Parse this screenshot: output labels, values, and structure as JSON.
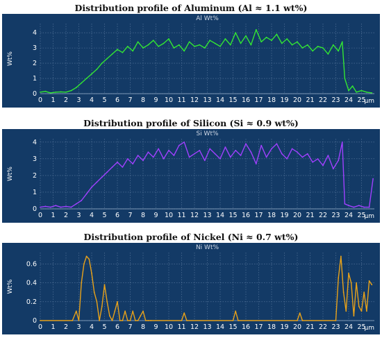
{
  "colors": {
    "panel_bg": "#133a66",
    "grid": "#5b7aa0",
    "aluminum": "#33e633",
    "silicon": "#a040ff",
    "nickel": "#e8a21a"
  },
  "chart_data": [
    {
      "type": "line",
      "title": "Distribution profile of Aluminum (Al ≈ 1.1 wt%)",
      "subtitle": "Al Wt%",
      "ylabel": "Wt%",
      "xlabel": "µm",
      "xlim": [
        0,
        26
      ],
      "ylim": [
        0,
        4.6
      ],
      "xticks": [
        "0",
        "1",
        "2",
        "3",
        "4",
        "5",
        "6",
        "7",
        "8",
        "9",
        "10",
        "11",
        "12",
        "13",
        "14",
        "15",
        "16",
        "17",
        "18",
        "19",
        "20",
        "21",
        "22",
        "23",
        "24",
        "25"
      ],
      "yticks": [
        "0",
        "1",
        "2",
        "3",
        "4"
      ],
      "grid": true,
      "series": [
        {
          "color": "#33e633",
          "x": [
            0,
            0.4,
            0.8,
            1.2,
            1.6,
            2.0,
            2.4,
            2.8,
            3.2,
            3.6,
            4.0,
            4.4,
            4.8,
            5.2,
            5.6,
            6.0,
            6.4,
            6.8,
            7.2,
            7.6,
            8.0,
            8.4,
            8.8,
            9.2,
            9.6,
            10.0,
            10.4,
            10.8,
            11.2,
            11.6,
            12.0,
            12.4,
            12.8,
            13.2,
            13.6,
            14.0,
            14.4,
            14.8,
            15.2,
            15.6,
            16.0,
            16.4,
            16.8,
            17.2,
            17.6,
            18.0,
            18.4,
            18.8,
            19.2,
            19.6,
            20.0,
            20.4,
            20.8,
            21.2,
            21.6,
            22.0,
            22.4,
            22.8,
            23.2,
            23.5,
            23.7,
            24.0,
            24.3,
            24.6,
            25.0,
            25.4,
            25.8
          ],
          "y": [
            0.1,
            0.15,
            0.05,
            0.1,
            0.12,
            0.1,
            0.2,
            0.4,
            0.7,
            1.0,
            1.3,
            1.6,
            2.0,
            2.3,
            2.6,
            2.9,
            2.7,
            3.1,
            2.8,
            3.4,
            3.0,
            3.2,
            3.5,
            3.1,
            3.3,
            3.6,
            3.0,
            3.2,
            2.8,
            3.4,
            3.1,
            3.2,
            3.0,
            3.5,
            3.3,
            3.1,
            3.6,
            3.2,
            4.0,
            3.3,
            3.8,
            3.2,
            4.2,
            3.4,
            3.7,
            3.5,
            3.9,
            3.3,
            3.6,
            3.2,
            3.4,
            3.0,
            3.2,
            2.8,
            3.1,
            3.0,
            2.6,
            3.2,
            2.8,
            3.4,
            1.0,
            0.2,
            0.5,
            0.1,
            0.2,
            0.1,
            0.05
          ]
        }
      ]
    },
    {
      "type": "line",
      "title": "Distribution profile of Silicon (Si ≈ 0.9 wt%)",
      "subtitle": "Si Wt%",
      "ylabel": "Wt%",
      "xlabel": "µm",
      "xlim": [
        0,
        26
      ],
      "ylim": [
        0,
        4.2
      ],
      "xticks": [
        "0",
        "1",
        "2",
        "3",
        "4",
        "5",
        "6",
        "7",
        "8",
        "9",
        "10",
        "11",
        "12",
        "13",
        "14",
        "15",
        "16",
        "17",
        "18",
        "19",
        "20",
        "21",
        "22",
        "23",
        "24",
        "25"
      ],
      "yticks": [
        "0",
        "1",
        "2",
        "3",
        "4"
      ],
      "grid": true,
      "series": [
        {
          "color": "#a040ff",
          "x": [
            0,
            0.4,
            0.8,
            1.2,
            1.6,
            2.0,
            2.4,
            2.8,
            3.2,
            3.6,
            4.0,
            4.4,
            4.8,
            5.2,
            5.6,
            6.0,
            6.4,
            6.8,
            7.2,
            7.6,
            8.0,
            8.4,
            8.8,
            9.2,
            9.6,
            10.0,
            10.4,
            10.8,
            11.2,
            11.6,
            12.0,
            12.4,
            12.8,
            13.2,
            13.6,
            14.0,
            14.4,
            14.8,
            15.2,
            15.6,
            16.0,
            16.4,
            16.8,
            17.2,
            17.6,
            18.0,
            18.4,
            18.8,
            19.2,
            19.6,
            20.0,
            20.4,
            20.8,
            21.2,
            21.6,
            22.0,
            22.4,
            22.8,
            23.2,
            23.5,
            23.7,
            24.0,
            24.4,
            24.8,
            25.2,
            25.6,
            25.9
          ],
          "y": [
            0.1,
            0.15,
            0.1,
            0.2,
            0.1,
            0.15,
            0.1,
            0.3,
            0.5,
            0.9,
            1.3,
            1.6,
            1.9,
            2.2,
            2.5,
            2.8,
            2.5,
            3.0,
            2.7,
            3.2,
            2.9,
            3.4,
            3.1,
            3.6,
            3.0,
            3.5,
            3.2,
            3.8,
            4.0,
            3.1,
            3.3,
            3.5,
            2.9,
            3.6,
            3.3,
            3.0,
            3.7,
            3.1,
            3.5,
            3.2,
            3.9,
            3.4,
            2.7,
            3.8,
            3.1,
            3.6,
            3.9,
            3.3,
            3.0,
            3.6,
            3.4,
            3.1,
            3.3,
            2.8,
            3.0,
            2.6,
            3.2,
            2.4,
            2.9,
            4.0,
            0.3,
            0.2,
            0.1,
            0.2,
            0.1,
            0.1,
            1.8
          ]
        }
      ]
    },
    {
      "type": "line",
      "title": "Distribution profile of Nickel (Ni ≈ 0.7 wt%)",
      "subtitle": "Ni Wt%",
      "ylabel": "Wt%",
      "xlabel": "µm",
      "xlim": [
        0,
        26
      ],
      "ylim": [
        0,
        0.72
      ],
      "xticks": [
        "0",
        "1",
        "2",
        "3",
        "4",
        "5",
        "6",
        "7",
        "8",
        "9",
        "10",
        "11",
        "12",
        "13",
        "14",
        "15",
        "16",
        "17",
        "18",
        "19",
        "20",
        "21",
        "22",
        "23",
        "24",
        "25"
      ],
      "yticks": [
        "0",
        "0.2",
        "0.4",
        "0.6"
      ],
      "grid": true,
      "series": [
        {
          "color": "#e8a21a",
          "x": [
            0,
            2.5,
            2.8,
            3.0,
            3.2,
            3.4,
            3.6,
            3.8,
            4.0,
            4.2,
            4.4,
            4.6,
            4.8,
            5.0,
            5.2,
            5.4,
            5.6,
            5.8,
            6.0,
            6.2,
            6.4,
            6.6,
            6.8,
            7.0,
            7.2,
            7.4,
            7.6,
            7.8,
            8.0,
            8.2,
            8.4,
            8.6,
            11.0,
            11.2,
            11.4,
            15.0,
            15.2,
            15.4,
            20.0,
            20.2,
            20.4,
            23.0,
            23.2,
            23.4,
            23.6,
            23.8,
            24.0,
            24.2,
            24.4,
            24.6,
            24.8,
            25.0,
            25.2,
            25.4,
            25.6,
            25.8
          ],
          "y": [
            0,
            0,
            0.1,
            0,
            0.4,
            0.6,
            0.68,
            0.65,
            0.5,
            0.3,
            0.2,
            0,
            0.15,
            0.38,
            0.2,
            0.05,
            0,
            0.1,
            0.2,
            0,
            0,
            0.1,
            0,
            0,
            0.1,
            0,
            0,
            0.05,
            0.1,
            0,
            0,
            0,
            0,
            0.08,
            0,
            0,
            0.1,
            0,
            0,
            0.08,
            0,
            0,
            0.45,
            0.68,
            0.3,
            0.1,
            0.5,
            0.4,
            0.05,
            0.4,
            0.15,
            0.1,
            0.3,
            0.1,
            0.42,
            0.38
          ]
        }
      ]
    }
  ]
}
